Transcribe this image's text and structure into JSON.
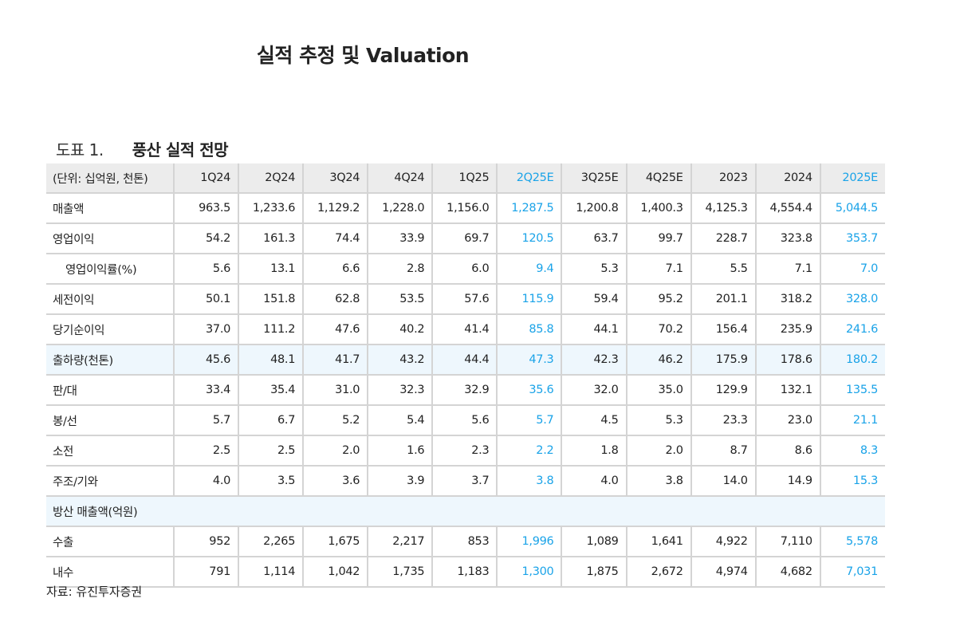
{
  "title": "실적 추정 및 Valuation",
  "figure": {
    "number": "도표 1.",
    "name": "풍산 실적 전망"
  },
  "colors": {
    "estimate": "#1aa3e8",
    "highlight_row": "#eef7fd",
    "header": "#ececec"
  },
  "table": {
    "unit_label": "(단위: 십억원, 천톤)",
    "columns": [
      "1Q24",
      "2Q24",
      "3Q24",
      "4Q24",
      "1Q25",
      "2Q25E",
      "3Q25E",
      "4Q25E",
      "2023",
      "2024",
      "2025E"
    ],
    "estimate_columns": [
      5,
      10
    ],
    "rows": [
      {
        "label": "매출액",
        "values": [
          "963.5",
          "1,233.6",
          "1,129.2",
          "1,228.0",
          "1,156.0",
          "1,287.5",
          "1,200.8",
          "1,400.3",
          "4,125.3",
          "4,554.4",
          "5,044.5"
        ]
      },
      {
        "label": "영업이익",
        "values": [
          "54.2",
          "161.3",
          "74.4",
          "33.9",
          "69.7",
          "120.5",
          "63.7",
          "99.7",
          "228.7",
          "323.8",
          "353.7"
        ]
      },
      {
        "label": "영업이익률(%)",
        "indent": true,
        "values": [
          "5.6",
          "13.1",
          "6.6",
          "2.8",
          "6.0",
          "9.4",
          "5.3",
          "7.1",
          "5.5",
          "7.1",
          "7.0"
        ]
      },
      {
        "label": "세전이익",
        "values": [
          "50.1",
          "151.8",
          "62.8",
          "53.5",
          "57.6",
          "115.9",
          "59.4",
          "95.2",
          "201.1",
          "318.2",
          "328.0"
        ]
      },
      {
        "label": "당기순이익",
        "values": [
          "37.0",
          "111.2",
          "47.6",
          "40.2",
          "41.4",
          "85.8",
          "44.1",
          "70.2",
          "156.4",
          "235.9",
          "241.6"
        ]
      },
      {
        "label": "출하량(천톤)",
        "highlight": true,
        "values": [
          "45.6",
          "48.1",
          "41.7",
          "43.2",
          "44.4",
          "47.3",
          "42.3",
          "46.2",
          "175.9",
          "178.6",
          "180.2"
        ]
      },
      {
        "label": "판/대",
        "values": [
          "33.4",
          "35.4",
          "31.0",
          "32.3",
          "32.9",
          "35.6",
          "32.0",
          "35.0",
          "129.9",
          "132.1",
          "135.5"
        ]
      },
      {
        "label": "봉/선",
        "values": [
          "5.7",
          "6.7",
          "5.2",
          "5.4",
          "5.6",
          "5.7",
          "4.5",
          "5.3",
          "23.3",
          "23.0",
          "21.1"
        ]
      },
      {
        "label": "소전",
        "values": [
          "2.5",
          "2.5",
          "2.0",
          "1.6",
          "2.3",
          "2.2",
          "1.8",
          "2.0",
          "8.7",
          "8.6",
          "8.3"
        ]
      },
      {
        "label": "주조/기와",
        "values": [
          "4.0",
          "3.5",
          "3.6",
          "3.9",
          "3.7",
          "3.8",
          "4.0",
          "3.8",
          "14.0",
          "14.9",
          "15.3"
        ]
      },
      {
        "label": "방산 매출액(억원)",
        "section": true
      },
      {
        "label": "수출",
        "values": [
          "952",
          "2,265",
          "1,675",
          "2,217",
          "853",
          "1,996",
          "1,089",
          "1,641",
          "4,922",
          "7,110",
          "5,578"
        ]
      },
      {
        "label": "내수",
        "values": [
          "791",
          "1,114",
          "1,042",
          "1,735",
          "1,183",
          "1,300",
          "1,875",
          "2,672",
          "4,974",
          "4,682",
          "7,031"
        ]
      }
    ]
  },
  "source": "자료: 유진투자증권"
}
